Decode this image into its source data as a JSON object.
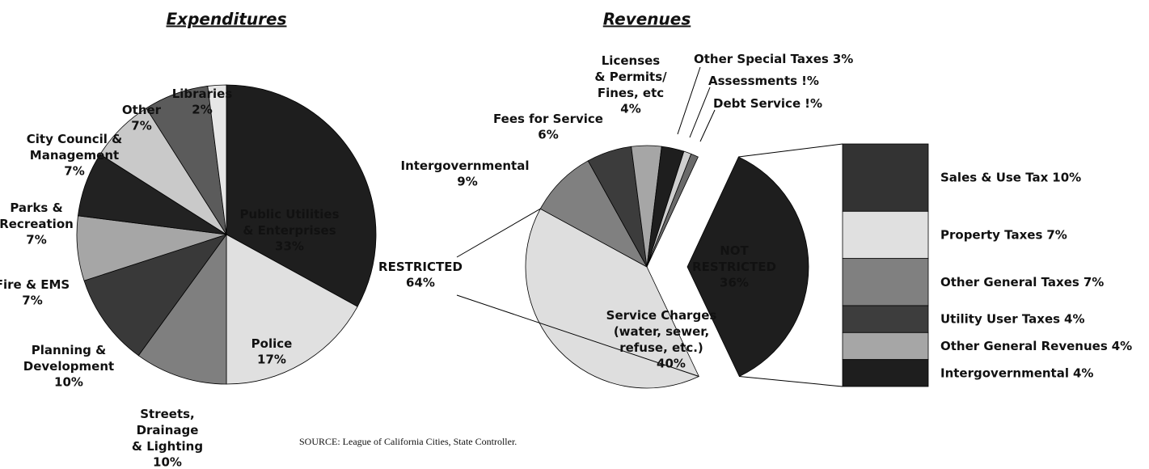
{
  "chart_data": [
    {
      "type": "pie",
      "title": "Expenditures",
      "categories": [
        [
          "Public Utilities",
          "& Enterprises"
        ],
        [
          "Police"
        ],
        [
          "Streets,",
          "Drainage",
          "& Lighting"
        ],
        [
          "Planning &",
          "Development"
        ],
        [
          "Fire & EMS"
        ],
        [
          "Parks &",
          "Recreation"
        ],
        [
          "City Council &",
          "Management"
        ],
        [
          "Other"
        ],
        [
          "Libraries"
        ]
      ],
      "values": [
        33,
        17,
        10,
        10,
        7,
        7,
        7,
        7,
        2
      ],
      "value_labels": [
        "33%",
        "17%",
        "10%",
        "10%",
        "7%",
        "7%",
        "7%",
        "7%",
        "2%"
      ],
      "colors": [
        "#1e1e1e",
        "#e0e0e0",
        "#7f7f7f",
        "#393939",
        "#a6a6a6",
        "#222222",
        "#c9c9c9",
        "#5b5b5b",
        "#e6e6e6"
      ]
    },
    {
      "type": "pie",
      "title": "Revenues",
      "categories": [
        [
          "Service Charges",
          "(water, sewer,",
          "refuse, etc.)"
        ],
        [
          "Intergovernmental"
        ],
        [
          "Fees for Service"
        ],
        [
          "Licenses",
          "& Permits/",
          "Fines, etc"
        ],
        [
          "Other Special Taxes"
        ],
        [
          "Assessments"
        ],
        [
          "Debt Service"
        ]
      ],
      "values": [
        40,
        9,
        6,
        4,
        3,
        1,
        1
      ],
      "value_labels": [
        "40%",
        "9%",
        "6%",
        "4%",
        "3%",
        "!%",
        "!%"
      ],
      "colors": [
        "#dedede",
        "#808080",
        "#3c3c3c",
        "#a6a6a6",
        "#1e1e1e",
        "#cfcfcf",
        "#6a6a6a"
      ],
      "groups": [
        {
          "name": [
            "RESTRICTED"
          ],
          "value": 64,
          "value_label": "64%",
          "color": "#ffffff"
        },
        {
          "name": [
            "NOT",
            "RESTRICTED"
          ],
          "value": 36,
          "value_label": "36%",
          "color": "#1e1e1e"
        }
      ],
      "breakdown": {
        "categories": [
          "Sales & Use Tax",
          "Property Taxes",
          "Other General Taxes",
          "Utility User Taxes",
          "Other General Revenues",
          "Intergovernmental"
        ],
        "values": [
          10,
          7,
          7,
          4,
          4,
          4
        ],
        "value_labels": [
          "10%",
          "7%",
          "7%",
          "4%",
          "4%",
          "4%"
        ],
        "colors": [
          "#333333",
          "#e0e0e0",
          "#808080",
          "#3d3d3d",
          "#a6a6a6",
          "#1e1e1e"
        ]
      }
    }
  ],
  "source": "SOURCE:  League of California Cities, State Controller."
}
